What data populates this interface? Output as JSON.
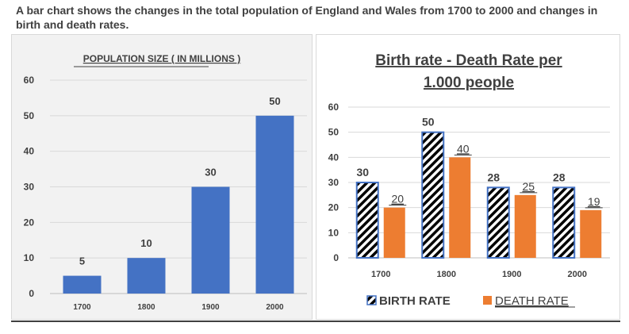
{
  "heading": "A bar chart shows the changes in the total population of England and Wales from 1700 to 2000 and changes in birth and death rates.",
  "colors": {
    "blue": "#4472c4",
    "orange": "#ed7d31",
    "darkblue": "#2f4b8f",
    "grid": "#d9d9d9",
    "text": "#404040"
  },
  "chart_data": [
    {
      "type": "bar",
      "title": "POPULATION SIZE ( IN MILLIONS )",
      "categories": [
        "1700",
        "1800",
        "1900",
        "2000"
      ],
      "values": [
        5,
        10,
        30,
        50
      ],
      "data_labels": [
        "5",
        "10",
        "30",
        "50"
      ],
      "ylim": [
        0,
        60
      ],
      "yticks": [
        "0",
        "10",
        "20",
        "30",
        "40",
        "50",
        "60"
      ],
      "grid": true,
      "xlabel": "",
      "ylabel": ""
    },
    {
      "type": "bar",
      "title_line1": "Birth rate - Death Rate per",
      "title_line2": "1.000 people",
      "categories": [
        "1700",
        "1800",
        "1900",
        "2000"
      ],
      "series": [
        {
          "name": "BIRTH RATE",
          "values": [
            30,
            50,
            28,
            28
          ],
          "labels": [
            "30",
            "50",
            "28",
            "28"
          ]
        },
        {
          "name": "DEATH RATE",
          "values": [
            20,
            40,
            25,
            19
          ],
          "labels": [
            "20",
            "40",
            "25",
            "19"
          ]
        }
      ],
      "ylim": [
        0,
        60
      ],
      "yticks": [
        "0",
        "10",
        "20",
        "30",
        "40",
        "50",
        "60"
      ],
      "grid": true,
      "legend": "bottom",
      "xlabel": "",
      "ylabel": ""
    }
  ]
}
